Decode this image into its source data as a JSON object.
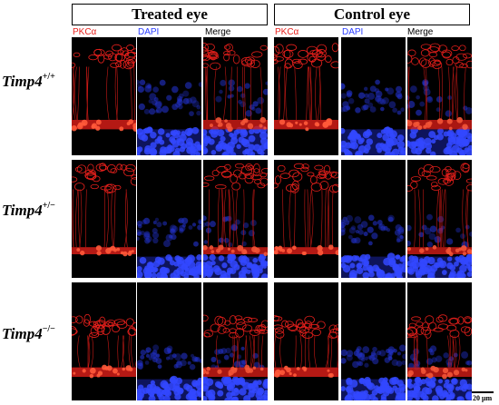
{
  "headers": {
    "treated": "Treated eye",
    "control": "Control eye"
  },
  "channels": {
    "pkc": "PKCα",
    "dapi": "DAPI",
    "merge": "Merge"
  },
  "rows": [
    {
      "gene": "Timp4",
      "genotype": "+/+"
    },
    {
      "gene": "Timp4",
      "genotype": "+/−"
    },
    {
      "gene": "Timp4",
      "genotype": "−/−"
    }
  ],
  "scale_bar": "20 μm",
  "colors": {
    "pkc": "#e8201c",
    "dapi": "#2a3cff",
    "panel_bg": "#000000"
  }
}
